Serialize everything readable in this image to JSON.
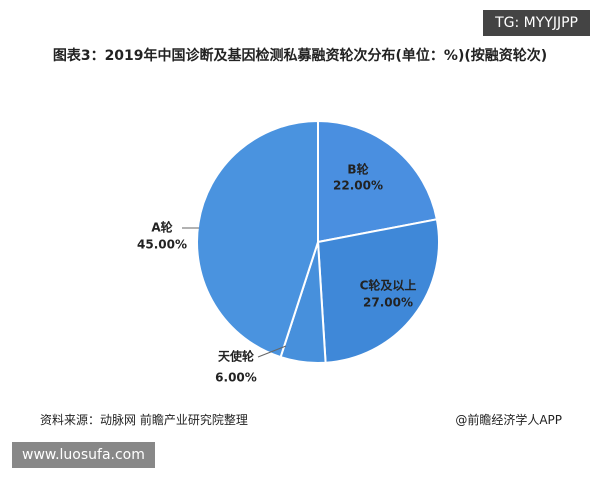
{
  "chart_data": {
    "type": "pie",
    "title": "图表3：2019年中国诊断及基因检测私募融资轮次分布(单位：%)(按融资轮次)",
    "categories": [
      "B轮",
      "C轮及以上",
      "天使轮",
      "A轮"
    ],
    "values": [
      22,
      27,
      6,
      45
    ],
    "value_labels": [
      "22.00%",
      "27.00%",
      "6.00%",
      "45.00%"
    ],
    "colors": [
      "#4a8fe0",
      "#3f88d8",
      "#4790dc",
      "#4a93df"
    ],
    "source": "资料来源：动脉网 前瞻产业研究院整理",
    "brand": "@前瞻经济学人APP"
  },
  "watermarks": {
    "top": "TG: MYYJJPP",
    "bottom": "www.luosufa.com"
  }
}
